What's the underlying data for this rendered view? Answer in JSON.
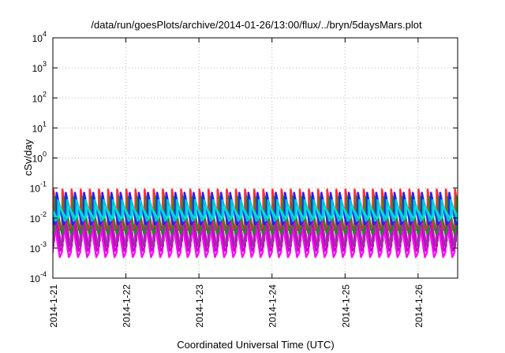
{
  "chart_data": {
    "type": "line",
    "title": "/data/run/goesPlots/archive/2014-01-26/13:00/flux/../bryn/5daysMars.plot",
    "xlabel": "Coordinated Universal Time (UTC)",
    "ylabel": "cSv/day",
    "yscale": "log",
    "ylim": [
      0.0001,
      10000
    ],
    "y_ticks": [
      {
        "base": "10",
        "exp": "-4",
        "value": 0.0001
      },
      {
        "base": "10",
        "exp": "-3",
        "value": 0.001
      },
      {
        "base": "10",
        "exp": "-2",
        "value": 0.01
      },
      {
        "base": "10",
        "exp": "-1",
        "value": 0.1
      },
      {
        "base": "10",
        "exp": "0",
        "value": 1
      },
      {
        "base": "10",
        "exp": "1",
        "value": 10
      },
      {
        "base": "10",
        "exp": "2",
        "value": 100
      },
      {
        "base": "10",
        "exp": "3",
        "value": 1000
      },
      {
        "base": "10",
        "exp": "4",
        "value": 10000
      }
    ],
    "xlim": [
      "2014-01-21",
      "2014-01-26T13:00"
    ],
    "x_ticks": [
      {
        "label": "2014-1-21",
        "date": "2014-01-21"
      },
      {
        "label": "2014-1-22",
        "date": "2014-01-22"
      },
      {
        "label": "2014-1-23",
        "date": "2014-01-23"
      },
      {
        "label": "2014-1-24",
        "date": "2014-01-24"
      },
      {
        "label": "2014-1-25",
        "date": "2014-01-25"
      },
      {
        "label": "2014-1-26",
        "date": "2014-01-26"
      }
    ],
    "grid": true,
    "cycles_per_day": 8,
    "series": [
      {
        "color": "#ff00ff",
        "peak": 0.012,
        "trough": 0.0005,
        "phase": 0.0
      },
      {
        "color": "#cc00cc",
        "peak": 0.02,
        "trough": 0.0008,
        "phase": 0.08
      },
      {
        "color": "#9b30a0",
        "peak": 0.03,
        "trough": 0.0012,
        "phase": 0.16
      },
      {
        "color": "#ff3030",
        "peak": 0.09,
        "trough": 0.004,
        "phase": 0.03
      },
      {
        "color": "#1e8c1e",
        "peak": 0.05,
        "trough": 0.003,
        "phase": 0.22
      },
      {
        "color": "#2020ff",
        "peak": 0.07,
        "trough": 0.006,
        "phase": 0.4
      },
      {
        "color": "#00c8c8",
        "peak": 0.04,
        "trough": 0.008,
        "phase": 0.55
      },
      {
        "color": "#00e0e0",
        "peak": 0.025,
        "trough": 0.01,
        "phase": 0.7
      }
    ]
  }
}
